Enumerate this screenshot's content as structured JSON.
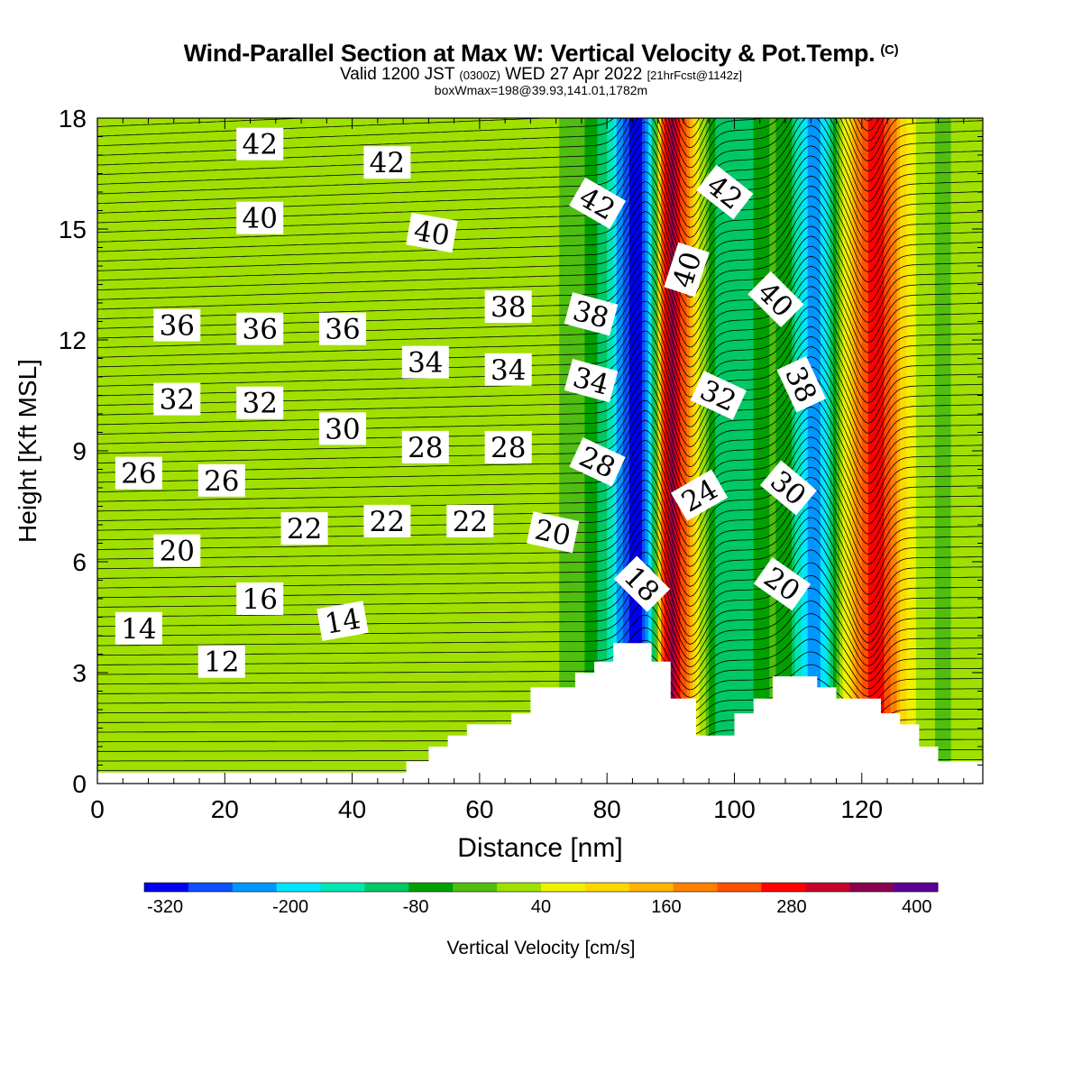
{
  "header": {
    "title": "Wind-Parallel Section at Max W: Vertical Velocity & Pot.Temp.",
    "copyright_mark": "(C)",
    "valid_prefix": "Valid 1200 JST",
    "valid_utc": "(0300Z)",
    "valid_date": "WED 27 Apr 2022",
    "forecast_info": "[21hrFcst@1142z]",
    "box_info": "boxWmax=198@39.93,141.01,1782m"
  },
  "chart_data": {
    "type": "heatmap",
    "title": "Wind-Parallel Section at Max W: Vertical Velocity & Pot.Temp.",
    "xlabel": "Distance [nm]",
    "ylabel": "Height [Kft MSL]",
    "xlim": [
      0,
      139
    ],
    "ylim": [
      0,
      18
    ],
    "x_ticks": [
      0,
      20,
      40,
      60,
      80,
      100,
      120
    ],
    "y_ticks": [
      0,
      3,
      6,
      9,
      12,
      15,
      18
    ],
    "colorbar": {
      "label": "Vertical Velocity [cm/s]",
      "tick_labels": [
        "-320",
        "-200",
        "-80",
        "40",
        "160",
        "280",
        "400"
      ],
      "tick_values": [
        -320,
        -200,
        -80,
        40,
        160,
        280,
        400
      ],
      "min": -340,
      "max": 420,
      "colors": [
        "#0000ee",
        "#0a50ff",
        "#0096ff",
        "#00e6ff",
        "#00e6b4",
        "#00c864",
        "#00a000",
        "#50be10",
        "#a0e000",
        "#f0f000",
        "#ffd700",
        "#ffb400",
        "#ff8000",
        "#ff5000",
        "#ff0000",
        "#c80028",
        "#8c0050",
        "#5a0096"
      ]
    },
    "vertical_velocity_columns": [
      {
        "x": 0,
        "w": 5
      },
      {
        "x": 10,
        "w": 3
      },
      {
        "x": 25,
        "w": 35
      },
      {
        "x": 33,
        "w": 0
      },
      {
        "x": 43,
        "w": 28
      },
      {
        "x": 57,
        "w": 3
      },
      {
        "x": 70,
        "w": 25
      },
      {
        "x": 78,
        "w": -60
      },
      {
        "x": 81,
        "w": -170
      },
      {
        "x": 83,
        "w": -290
      },
      {
        "x": 85,
        "w": -330
      },
      {
        "x": 87,
        "w": -190
      },
      {
        "x": 88,
        "w": 60
      },
      {
        "x": 89,
        "w": 260
      },
      {
        "x": 90,
        "w": 360
      },
      {
        "x": 91,
        "w": 300
      },
      {
        "x": 93,
        "w": 160
      },
      {
        "x": 95,
        "w": 20
      },
      {
        "x": 97,
        "w": -90
      },
      {
        "x": 100,
        "w": -120
      },
      {
        "x": 103,
        "w": -90
      },
      {
        "x": 106,
        "w": -40
      },
      {
        "x": 109,
        "w": -90
      },
      {
        "x": 111,
        "w": -200
      },
      {
        "x": 113,
        "w": -240
      },
      {
        "x": 115,
        "w": -150
      },
      {
        "x": 117,
        "w": 30
      },
      {
        "x": 119,
        "w": 160
      },
      {
        "x": 121,
        "w": 250
      },
      {
        "x": 123,
        "w": 260
      },
      {
        "x": 125,
        "w": 190
      },
      {
        "x": 127,
        "w": 80
      },
      {
        "x": 130,
        "w": 5
      },
      {
        "x": 133,
        "w": -10
      },
      {
        "x": 136,
        "w": 20
      },
      {
        "x": 139,
        "w": 35
      }
    ],
    "terrain": [
      [
        0,
        0.3
      ],
      [
        48.5,
        0.3
      ],
      [
        48.5,
        0.6
      ],
      [
        52,
        0.6
      ],
      [
        52,
        1.0
      ],
      [
        55,
        1.0
      ],
      [
        55,
        1.3
      ],
      [
        58,
        1.3
      ],
      [
        58,
        1.6
      ],
      [
        65,
        1.6
      ],
      [
        65,
        1.9
      ],
      [
        68,
        1.9
      ],
      [
        68,
        2.6
      ],
      [
        75,
        2.6
      ],
      [
        75,
        3.0
      ],
      [
        78,
        3.0
      ],
      [
        78,
        3.3
      ],
      [
        81,
        3.3
      ],
      [
        81,
        3.8
      ],
      [
        87,
        3.8
      ],
      [
        87,
        3.3
      ],
      [
        90,
        3.3
      ],
      [
        90,
        2.3
      ],
      [
        94,
        2.3
      ],
      [
        94,
        1.3
      ],
      [
        100,
        1.3
      ],
      [
        100,
        1.9
      ],
      [
        103,
        1.9
      ],
      [
        103,
        2.3
      ],
      [
        106,
        2.3
      ],
      [
        106,
        2.9
      ],
      [
        113,
        2.9
      ],
      [
        113,
        2.6
      ],
      [
        116,
        2.6
      ],
      [
        116,
        2.3
      ],
      [
        123,
        2.3
      ],
      [
        123,
        1.9
      ],
      [
        126,
        1.9
      ],
      [
        126,
        1.6
      ],
      [
        129,
        1.6
      ],
      [
        129,
        1.0
      ],
      [
        132,
        1.0
      ],
      [
        132,
        0.6
      ],
      [
        139,
        0.6
      ]
    ],
    "potential_temperature_labels": [
      {
        "text": "42",
        "x": 25.5,
        "y": 17.3
      },
      {
        "text": "42",
        "x": 45.5,
        "y": 16.8
      },
      {
        "text": "42",
        "x": 78.5,
        "y": 15.7,
        "rot": 30
      },
      {
        "text": "42",
        "x": 98.5,
        "y": 16.0,
        "rot": 38
      },
      {
        "text": "40",
        "x": 25.5,
        "y": 15.3
      },
      {
        "text": "40",
        "x": 52.5,
        "y": 14.9,
        "rot": 10
      },
      {
        "text": "40",
        "x": 92.5,
        "y": 13.9,
        "rot": -72
      },
      {
        "text": "40",
        "x": 106.5,
        "y": 13.1,
        "rot": 45
      },
      {
        "text": "38",
        "x": 64.5,
        "y": 12.9
      },
      {
        "text": "38",
        "x": 77.5,
        "y": 12.7,
        "rot": 15
      },
      {
        "text": "38",
        "x": 110.5,
        "y": 10.8,
        "rot": 65
      },
      {
        "text": "36",
        "x": 12.5,
        "y": 12.4
      },
      {
        "text": "36",
        "x": 25.5,
        "y": 12.3
      },
      {
        "text": "36",
        "x": 38.5,
        "y": 12.3
      },
      {
        "text": "34",
        "x": 51.5,
        "y": 11.4
      },
      {
        "text": "34",
        "x": 64.5,
        "y": 11.2
      },
      {
        "text": "34",
        "x": 77.5,
        "y": 10.9,
        "rot": 15
      },
      {
        "text": "32",
        "x": 97.5,
        "y": 10.5,
        "rot": 25
      },
      {
        "text": "32",
        "x": 12.5,
        "y": 10.4
      },
      {
        "text": "32",
        "x": 25.5,
        "y": 10.3
      },
      {
        "text": "30",
        "x": 38.5,
        "y": 9.6
      },
      {
        "text": "30",
        "x": 108.5,
        "y": 8.0,
        "rot": 40
      },
      {
        "text": "28",
        "x": 51.5,
        "y": 9.1
      },
      {
        "text": "28",
        "x": 64.5,
        "y": 9.1
      },
      {
        "text": "28",
        "x": 78.5,
        "y": 8.7,
        "rot": 25
      },
      {
        "text": "24",
        "x": 94.5,
        "y": 7.8,
        "rot": -30
      },
      {
        "text": "26",
        "x": 6.5,
        "y": 8.4
      },
      {
        "text": "26",
        "x": 19.5,
        "y": 8.2
      },
      {
        "text": "22",
        "x": 32.5,
        "y": 6.9
      },
      {
        "text": "22",
        "x": 45.5,
        "y": 7.1
      },
      {
        "text": "22",
        "x": 58.5,
        "y": 7.1
      },
      {
        "text": "20",
        "x": 71.5,
        "y": 6.8,
        "rot": 12
      },
      {
        "text": "20",
        "x": 12.5,
        "y": 6.3
      },
      {
        "text": "20",
        "x": 107.5,
        "y": 5.4,
        "rot": 35
      },
      {
        "text": "18",
        "x": 85.5,
        "y": 5.4,
        "rot": 45
      },
      {
        "text": "16",
        "x": 25.5,
        "y": 5.0
      },
      {
        "text": "14",
        "x": 6.5,
        "y": 4.2
      },
      {
        "text": "14",
        "x": 38.5,
        "y": 4.4,
        "rot": -10
      },
      {
        "text": "12",
        "x": 19.5,
        "y": 3.3
      }
    ]
  }
}
